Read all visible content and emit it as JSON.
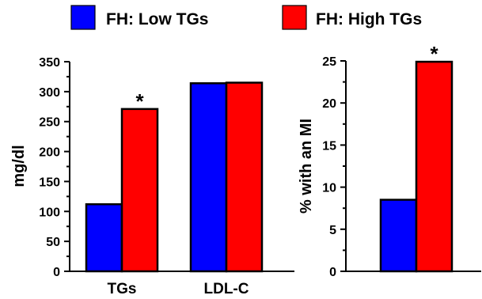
{
  "legend": [
    {
      "label": "FH: Low TGs",
      "color": "#0000FF"
    },
    {
      "label": "FH: High TGs",
      "color": "#FF0000"
    }
  ],
  "chart_data": [
    {
      "type": "bar",
      "ylabel": "mg/dl",
      "ylim": [
        0,
        350
      ],
      "yticks": [
        0,
        50,
        100,
        150,
        200,
        250,
        300,
        350
      ],
      "categories": [
        "TGs",
        "LDL-C"
      ],
      "series": [
        {
          "name": "FH: Low TGs",
          "color": "#0000FF",
          "values": [
            112,
            314
          ]
        },
        {
          "name": "FH: High TGs",
          "color": "#FF0000",
          "values": [
            271,
            315
          ]
        }
      ],
      "annotations": [
        {
          "category": "TGs",
          "series": 1,
          "text": "*"
        }
      ],
      "grid": false
    },
    {
      "type": "bar",
      "ylabel": "% with an MI",
      "ylim": [
        0,
        25
      ],
      "yticks": [
        0,
        5,
        10,
        15,
        20,
        25
      ],
      "categories": [
        ""
      ],
      "series": [
        {
          "name": "FH: Low TGs",
          "color": "#0000FF",
          "values": [
            8.5
          ]
        },
        {
          "name": "FH: High TGs",
          "color": "#FF0000",
          "values": [
            24.9
          ]
        }
      ],
      "annotations": [
        {
          "category": "",
          "series": 1,
          "text": "*"
        }
      ],
      "grid": false
    }
  ]
}
